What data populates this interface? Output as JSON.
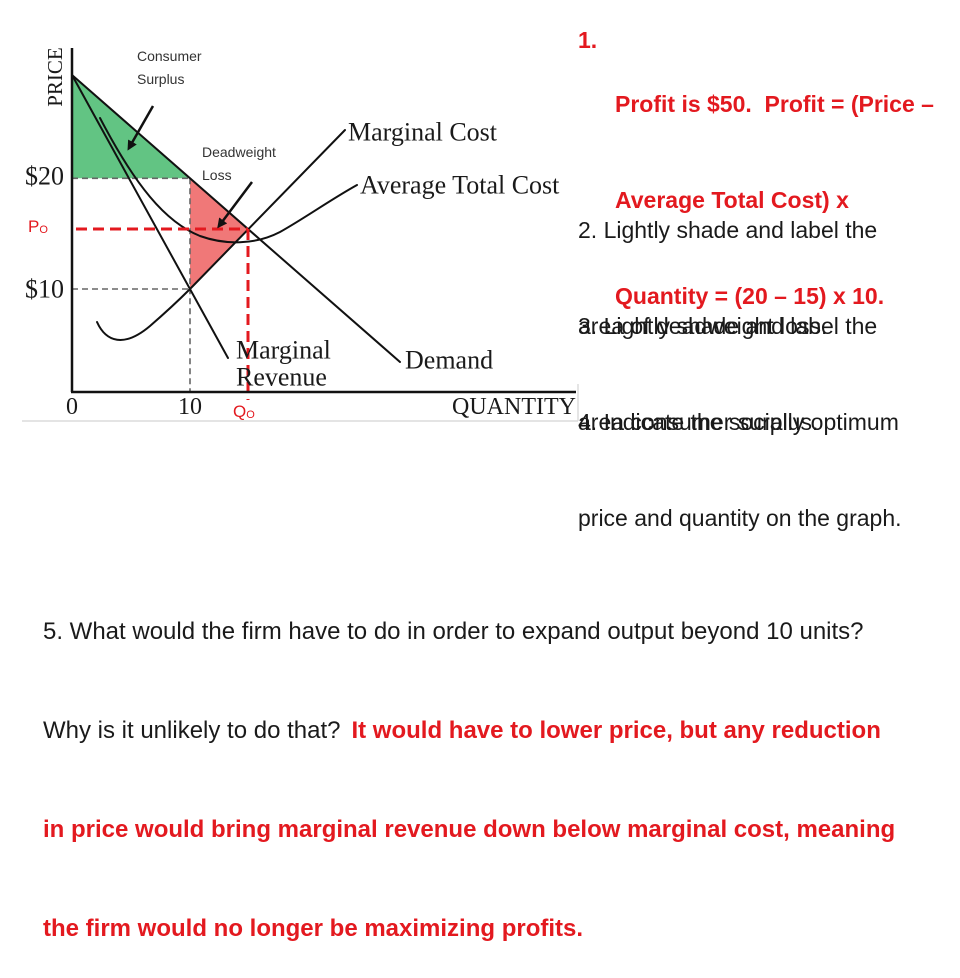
{
  "diagram": {
    "y_axis_label": "PRICE",
    "x_axis_label": "QUANTITY",
    "y_tick_labels": {
      "high": "$20",
      "low": "$10"
    },
    "x_tick_labels": {
      "origin": "0",
      "q10": "10"
    },
    "curve_labels": {
      "marginal_cost": "Marginal Cost",
      "average_total_cost": "Average Total Cost",
      "demand": "Demand",
      "marginal_revenue": [
        "Marginal",
        "Revenue"
      ]
    },
    "annotations": {
      "consumer_surplus": [
        "Consumer",
        "Surplus"
      ],
      "deadweight_loss": [
        "Deadweight",
        "Loss"
      ]
    },
    "optimum_price_label": {
      "letter": "P",
      "subscript": "O"
    },
    "optimum_quantity_label": {
      "letter": "Q",
      "subscript": "O"
    }
  },
  "questions": {
    "q1": {
      "number": "1.",
      "lines": [
        "Profit is $50.  Profit = (Price –",
        "Average Total Cost) x",
        "Quantity = (20 – 15) x 10."
      ]
    },
    "q2": {
      "lines": [
        "2. Lightly shade and label the",
        "area of deadweight loss."
      ]
    },
    "q3": {
      "lines": [
        "3. Lightly shade and label the",
        "area consumer surplus."
      ]
    },
    "q4": {
      "lines": [
        "4. Indicate the socially optimum",
        "price and quantity on the graph."
      ]
    },
    "q5": {
      "question_line1": "5. What would the firm have to do in order to expand output beyond 10 units?",
      "question_line2": "Why is it unlikely to do that?",
      "answer_lines": [
        "It would have to lower price, but any reduction",
        "in price would bring marginal revenue down below marginal cost, meaning",
        "the firm would no longer be maximizing profits."
      ]
    }
  },
  "colors": {
    "answer_red": "#e3191f",
    "consumer_surplus_fill": "#62c483",
    "deadweight_loss_fill": "#f07878",
    "text": "#1a1a1a"
  }
}
